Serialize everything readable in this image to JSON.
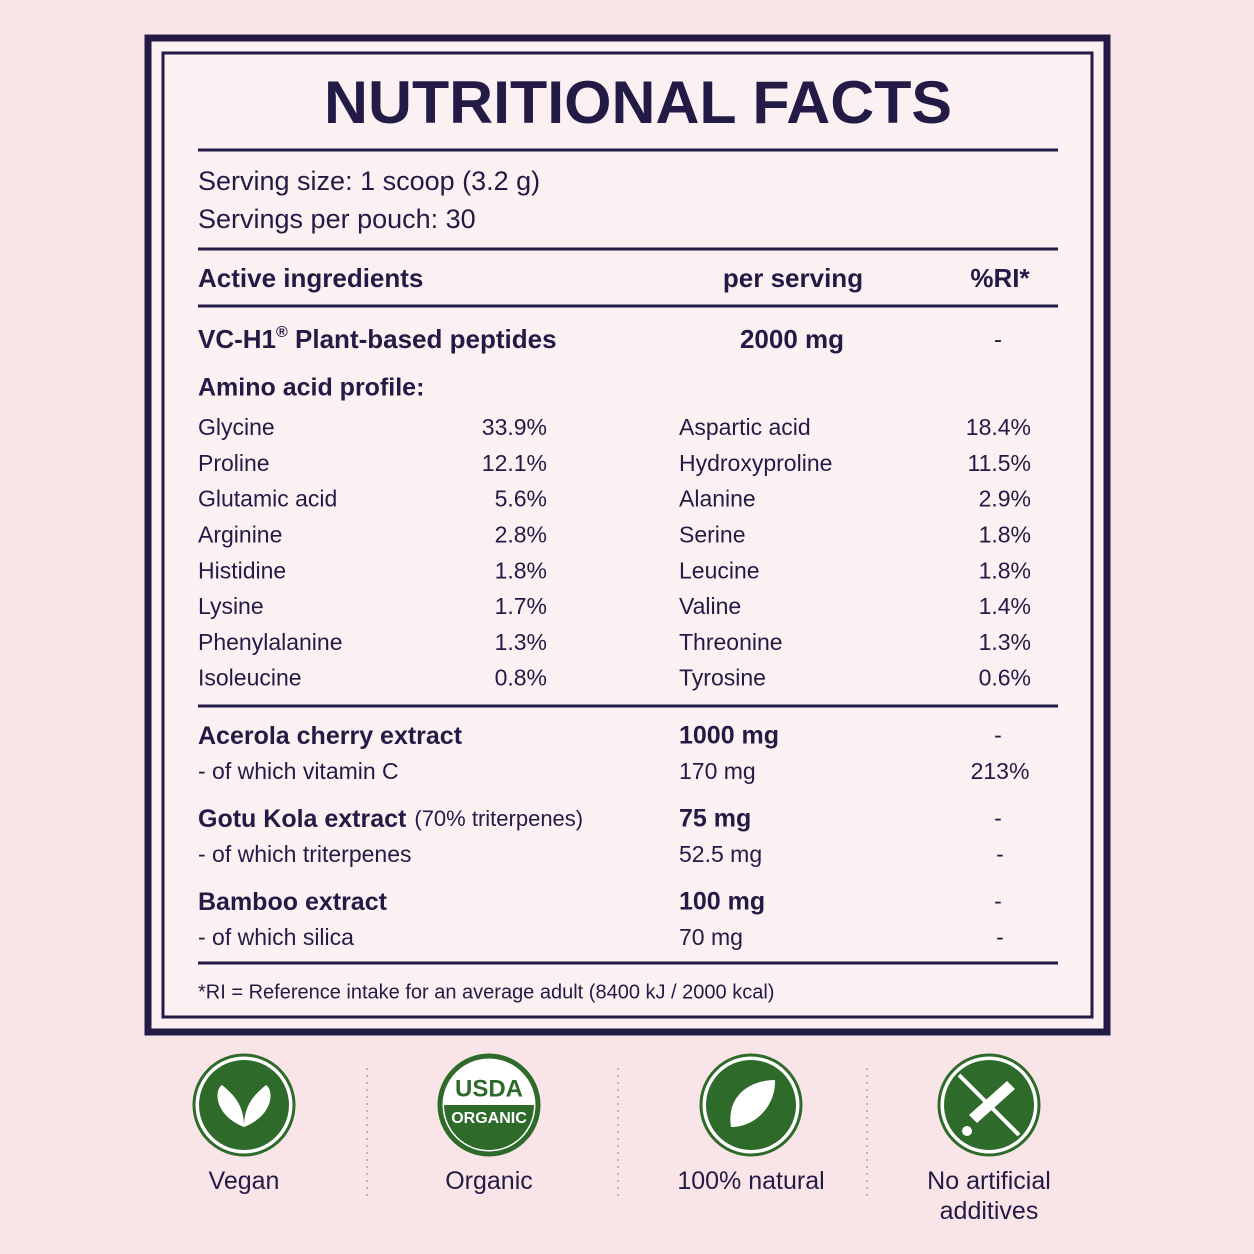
{
  "title": "NUTRITIONAL FACTS",
  "serving": [
    "Serving size: 1 scoop (3.2 g)",
    "Servings per pouch: 30"
  ],
  "header": [
    "Active ingredients",
    "per serving",
    "%RI*"
  ],
  "peptides": {
    "name": "VC-H1",
    "mark": "®",
    "suffix": " Plant-based peptides",
    "amount": "2000 mg",
    "ri": "-"
  },
  "amino_title": "Amino acid profile:",
  "amino": [
    [
      "Glycine",
      "33.9%",
      "Aspartic acid",
      "18.4%"
    ],
    [
      "Proline",
      "12.1%",
      "Hydroxyproline",
      "11.5%"
    ],
    [
      "Glutamic acid",
      "5.6%",
      "Alanine",
      "2.9%"
    ],
    [
      "Arginine",
      "2.8%",
      "Serine",
      "1.8%"
    ],
    [
      "Histidine",
      "1.8%",
      "Leucine",
      "1.8%"
    ],
    [
      "Lysine",
      "1.7%",
      "Valine",
      "1.4%"
    ],
    [
      "Phenylalanine",
      "1.3%",
      "Threonine",
      "1.3%"
    ],
    [
      "Isoleucine",
      "0.8%",
      "Tyrosine",
      "0.6%"
    ]
  ],
  "extracts": [
    {
      "name": "Acerola cherry extract",
      "amount": "1000 mg",
      "ri": "-",
      "sub": "- of which vitamin C",
      "sub_amount": "170 mg",
      "sub_ri": "213%"
    },
    {
      "name": "Gotu Kola extract",
      "note": "(70% triterpenes)",
      "amount": "75 mg",
      "ri": "-",
      "sub": "- of which triterpenes",
      "sub_amount": "52.5 mg",
      "sub_ri": "-"
    },
    {
      "name": "Bamboo extract",
      "amount": "100 mg",
      "ri": "-",
      "sub": "- of which silica",
      "sub_amount": "70 mg",
      "sub_ri": "-"
    }
  ],
  "footnote": "*RI = Reference intake for an average adult (8400 kJ / 2000 kcal)",
  "usda": [
    "USDA",
    "ORGANIC"
  ],
  "badges": [
    [
      "Vegan"
    ],
    [
      "Organic"
    ],
    [
      "100% natural"
    ],
    [
      "No artificial",
      "additives"
    ]
  ]
}
